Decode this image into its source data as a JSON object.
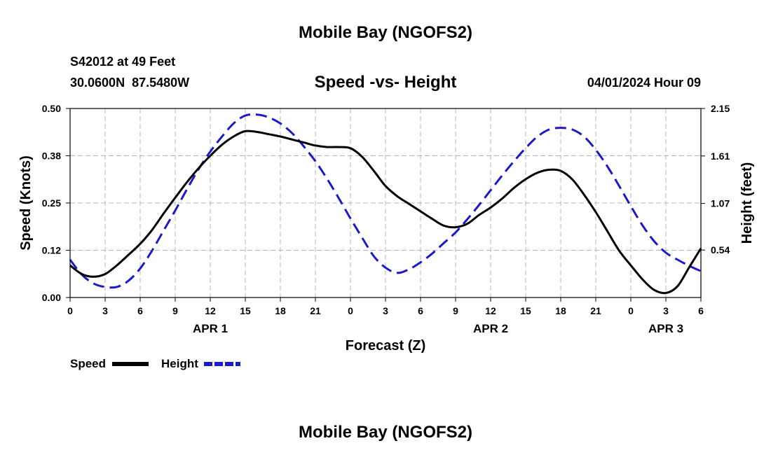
{
  "page": {
    "top_title": "Mobile Bay (NGOFS2)",
    "bottom_title": "Mobile Bay (NGOFS2)",
    "station_line": "S42012 at 49 Feet",
    "coords_line": "30.0600N  87.5480W",
    "date_line": "04/01/2024 Hour 09"
  },
  "chart_data": {
    "type": "line",
    "title": "Speed -vs- Height",
    "xlabel": "Forecast (Z)",
    "ylabel": "Speed (Knots)",
    "ylabel_right": "Height (feet)",
    "x_unit": "hours from 2024-04-01 00Z",
    "xlim": [
      0,
      54
    ],
    "ylim": [
      0,
      0.5
    ],
    "ylim_right": [
      0,
      2.15
    ],
    "x_ticks": [
      0,
      3,
      6,
      9,
      12,
      15,
      18,
      21,
      24,
      27,
      30,
      33,
      36,
      39,
      42,
      45,
      48,
      51,
      54
    ],
    "x_tick_labels": [
      "0",
      "3",
      "6",
      "9",
      "12",
      "15",
      "18",
      "21",
      "0",
      "3",
      "6",
      "9",
      "12",
      "15",
      "18",
      "21",
      "0",
      "3",
      "6"
    ],
    "day_labels": [
      {
        "x": 12,
        "label": "APR 1"
      },
      {
        "x": 36,
        "label": "APR 2"
      },
      {
        "x": 51,
        "label": "APR 3"
      }
    ],
    "y_ticks": [
      0,
      0.125,
      0.25,
      0.375,
      0.5
    ],
    "y_tick_labels": [
      "0.00",
      "0.12",
      "0.25",
      "0.38",
      "0.50"
    ],
    "y2_ticks": [
      0.54,
      1.07,
      1.61,
      2.15
    ],
    "y2_tick_labels": [
      "0.54",
      "1.07",
      "1.61",
      "2.15"
    ],
    "grid": true,
    "legend_position": "bottom-left",
    "series": [
      {
        "name": "Speed",
        "axis": "left",
        "color": "#000000",
        "dash": "solid",
        "x": [
          0,
          1,
          2,
          3,
          4,
          5,
          6,
          7,
          8,
          9,
          10,
          11,
          12,
          13,
          14,
          15,
          16,
          17,
          18,
          19,
          20,
          21,
          22,
          23,
          24,
          25,
          26,
          27,
          28,
          29,
          30,
          31,
          32,
          33,
          34,
          35,
          36,
          37,
          38,
          39,
          40,
          41,
          42,
          43,
          44,
          45,
          46,
          47,
          48,
          49,
          50,
          51,
          52,
          53,
          54
        ],
        "y": [
          0.085,
          0.062,
          0.055,
          0.062,
          0.085,
          0.113,
          0.142,
          0.178,
          0.222,
          0.264,
          0.305,
          0.342,
          0.375,
          0.404,
          0.426,
          0.44,
          0.438,
          0.432,
          0.426,
          0.418,
          0.41,
          0.402,
          0.398,
          0.398,
          0.395,
          0.372,
          0.335,
          0.295,
          0.268,
          0.248,
          0.228,
          0.208,
          0.19,
          0.186,
          0.195,
          0.218,
          0.238,
          0.262,
          0.29,
          0.313,
          0.33,
          0.338,
          0.335,
          0.312,
          0.272,
          0.226,
          0.175,
          0.124,
          0.085,
          0.048,
          0.02,
          0.012,
          0.03,
          0.08,
          0.13
        ]
      },
      {
        "name": "Height",
        "axis": "right",
        "color": "#1a1acc",
        "dash": "dashed",
        "x": [
          0,
          1,
          2,
          3,
          4,
          5,
          6,
          7,
          8,
          9,
          10,
          11,
          12,
          13,
          14,
          15,
          16,
          17,
          18,
          19,
          20,
          21,
          22,
          23,
          24,
          25,
          26,
          27,
          28,
          29,
          30,
          31,
          32,
          33,
          34,
          35,
          36,
          37,
          38,
          39,
          40,
          41,
          42,
          43,
          44,
          45,
          46,
          47,
          48,
          49,
          50,
          51,
          52,
          53,
          54
        ],
        "y": [
          0.43,
          0.26,
          0.16,
          0.12,
          0.12,
          0.19,
          0.33,
          0.53,
          0.76,
          0.99,
          1.23,
          1.46,
          1.66,
          1.83,
          1.98,
          2.07,
          2.08,
          2.05,
          1.98,
          1.87,
          1.72,
          1.55,
          1.35,
          1.13,
          0.9,
          0.68,
          0.47,
          0.34,
          0.28,
          0.32,
          0.4,
          0.5,
          0.62,
          0.74,
          0.89,
          1.05,
          1.22,
          1.39,
          1.55,
          1.7,
          1.83,
          1.91,
          1.93,
          1.91,
          1.83,
          1.68,
          1.49,
          1.27,
          1.04,
          0.82,
          0.64,
          0.51,
          0.43,
          0.36,
          0.3
        ]
      }
    ]
  }
}
